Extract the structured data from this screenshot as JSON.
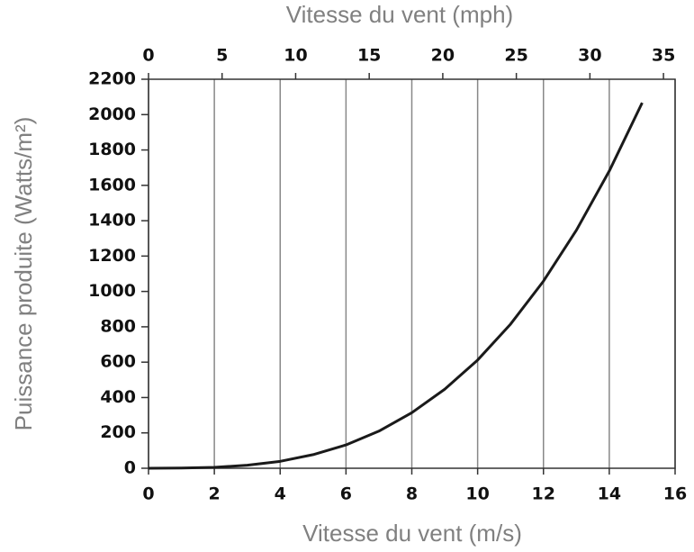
{
  "chart_data": {
    "type": "line",
    "xlabel": "Vitesse du vent (m/s)",
    "x2label": "Vitesse du vent (mph)",
    "ylabel": "Puissance produite (Watts/m²)",
    "x": [
      0,
      1,
      2,
      3,
      4,
      5,
      6,
      7,
      8,
      9,
      10,
      11,
      12,
      13,
      14,
      15
    ],
    "series": [
      {
        "color": "#1a1a1a",
        "values": [
          0,
          1,
          5,
          17,
          39,
          77,
          132,
          210,
          314,
          447,
          612,
          815,
          1058,
          1346,
          1681,
          2067
        ]
      }
    ],
    "xlim": [
      0,
      16
    ],
    "xticks": [
      0,
      2,
      4,
      6,
      8,
      10,
      12,
      14,
      16
    ],
    "x2lim": [
      0,
      35.79
    ],
    "x2ticks": [
      0,
      5,
      10,
      15,
      20,
      25,
      30,
      35
    ],
    "ylim": [
      0,
      2200
    ],
    "yticks": [
      0,
      200,
      400,
      600,
      800,
      1000,
      1200,
      1400,
      1600,
      1800,
      2000,
      2200
    ],
    "grid": "vertical"
  }
}
